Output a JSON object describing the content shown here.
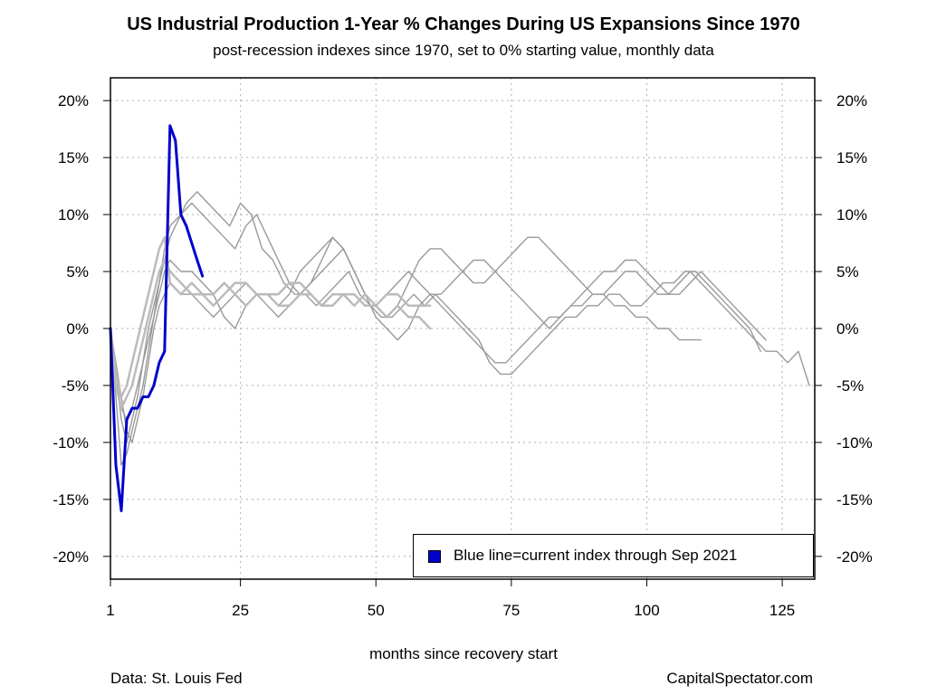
{
  "chart_data": {
    "type": "line",
    "title": "US Industrial Production 1-Year % Changes During US Expansions Since 1970",
    "subtitle": "post-recession indexes since 1970, set to 0% starting value, monthly data",
    "xlabel": "months since recovery start",
    "ylabel": "",
    "xlim": [
      1,
      131
    ],
    "ylim": [
      -22,
      22
    ],
    "x_ticks": [
      1,
      25,
      50,
      75,
      100,
      125
    ],
    "y_ticks": [
      {
        "value": 20,
        "label": "20%"
      },
      {
        "value": 15,
        "label": "15%"
      },
      {
        "value": 10,
        "label": "10%"
      },
      {
        "value": 5,
        "label": "5%"
      },
      {
        "value": 0,
        "label": "0%"
      },
      {
        "value": -5,
        "label": "-5%"
      },
      {
        "value": -10,
        "label": "-10%"
      },
      {
        "value": -15,
        "label": "-15%"
      },
      {
        "value": -20,
        "label": "-20%"
      }
    ],
    "grid": true,
    "legend": {
      "position": "bottom-right",
      "label": "Blue line=current index through Sep 2021"
    },
    "series": [
      {
        "style": "past",
        "color": "#999999",
        "x": [
          1,
          2,
          3,
          4,
          5,
          6,
          7,
          8,
          9,
          10,
          11,
          12,
          13,
          15,
          17,
          19,
          21,
          23,
          25,
          27,
          29,
          31,
          33,
          35,
          37,
          39,
          41,
          43,
          45,
          47,
          49,
          51,
          53,
          55,
          57,
          59,
          61,
          63,
          65,
          67,
          69,
          71,
          73,
          75,
          77,
          79,
          81,
          83,
          85,
          87,
          89,
          91,
          93,
          95,
          97,
          99,
          101,
          103,
          105,
          107,
          109,
          111,
          113,
          115,
          117,
          119,
          121
        ],
        "y": [
          0,
          -4,
          -8,
          -10,
          -8,
          -6,
          -3,
          0,
          2,
          4,
          6,
          8,
          9,
          11,
          12,
          11,
          10,
          9,
          11,
          10,
          7,
          6,
          4,
          3,
          3,
          2,
          3,
          4,
          5,
          3,
          2,
          1,
          1,
          2,
          3,
          2,
          3,
          2,
          1,
          0,
          -1,
          -3,
          -4,
          -4,
          -3,
          -2,
          -1,
          0,
          1,
          1,
          2,
          2,
          3,
          3,
          2,
          2,
          3,
          4,
          4,
          5,
          5,
          4,
          3,
          2,
          1,
          0,
          -2
        ]
      },
      {
        "style": "past",
        "color": "#999999",
        "x": [
          1,
          2,
          3,
          4,
          5,
          6,
          7,
          8,
          9,
          10,
          11,
          12,
          14,
          16,
          18,
          20,
          22,
          24,
          26,
          28,
          30,
          32,
          34,
          36,
          38,
          40,
          42,
          44,
          46,
          48,
          50,
          52,
          54,
          56,
          58,
          60,
          62,
          64,
          66,
          68,
          70,
          72,
          74,
          76,
          78,
          80,
          82,
          84,
          86,
          88,
          90,
          92,
          94,
          96,
          98,
          100,
          102,
          104,
          106,
          108,
          110,
          112,
          114,
          116,
          118,
          120,
          122,
          124,
          126,
          128,
          130
        ],
        "y": [
          0,
          -6,
          -12,
          -11,
          -9,
          -7,
          -5,
          -2,
          1,
          4,
          7,
          9,
          10,
          11,
          10,
          9,
          8,
          7,
          9,
          10,
          8,
          6,
          4,
          3,
          4,
          5,
          6,
          7,
          5,
          3,
          2,
          1,
          2,
          4,
          6,
          7,
          7,
          6,
          5,
          4,
          4,
          5,
          6,
          7,
          8,
          8,
          7,
          6,
          5,
          4,
          3,
          3,
          4,
          5,
          5,
          4,
          3,
          3,
          4,
          5,
          4,
          3,
          2,
          1,
          0,
          -1,
          -2,
          -2,
          -3,
          -2,
          -5
        ]
      },
      {
        "style": "past",
        "color": "#999999",
        "x": [
          1,
          2,
          3,
          4,
          5,
          6,
          7,
          8,
          9,
          10,
          11,
          12,
          14,
          16,
          18,
          20,
          22,
          24,
          26,
          28,
          30,
          32,
          34,
          36,
          38,
          40,
          42,
          44,
          46,
          48,
          50,
          52,
          54,
          56,
          58,
          60,
          62,
          64,
          66,
          68,
          70,
          72,
          74,
          76,
          78,
          80,
          82,
          84,
          86,
          88,
          90,
          92,
          94,
          96,
          98,
          100,
          102,
          104,
          106,
          108,
          110
        ],
        "y": [
          0,
          -4,
          -7,
          -8,
          -7,
          -5,
          -3,
          -1,
          1,
          3,
          5,
          6,
          5,
          5,
          4,
          3,
          1,
          0,
          2,
          3,
          3,
          2,
          3,
          5,
          6,
          7,
          8,
          7,
          5,
          3,
          2,
          3,
          4,
          5,
          4,
          3,
          2,
          1,
          0,
          -1,
          -2,
          -3,
          -3,
          -2,
          -1,
          0,
          1,
          1,
          2,
          2,
          3,
          3,
          2,
          2,
          1,
          1,
          0,
          0,
          -1,
          -1,
          -1
        ]
      },
      {
        "style": "past",
        "color": "#999999",
        "x": [
          1,
          2,
          3,
          4,
          5,
          6,
          7,
          8,
          9,
          10,
          11,
          12,
          14,
          16,
          18,
          20,
          22,
          24,
          26,
          28,
          30,
          32,
          34,
          36,
          38,
          40,
          42,
          44,
          46,
          48,
          50,
          52,
          54,
          56,
          58,
          60,
          62,
          64,
          66,
          68,
          70,
          72,
          74,
          76,
          78,
          80,
          82,
          84,
          86,
          88,
          90,
          92,
          94,
          96,
          98,
          100,
          102,
          104,
          106,
          108,
          110,
          112,
          114,
          116,
          118,
          120,
          122
        ],
        "y": [
          0,
          -3,
          -6,
          -9,
          -10,
          -8,
          -6,
          -3,
          0,
          2,
          3,
          4,
          3,
          3,
          2,
          1,
          2,
          3,
          4,
          3,
          2,
          1,
          2,
          3,
          4,
          6,
          8,
          7,
          5,
          3,
          1,
          0,
          -1,
          0,
          2,
          3,
          3,
          4,
          5,
          6,
          6,
          5,
          4,
          3,
          2,
          1,
          0,
          1,
          2,
          3,
          4,
          5,
          5,
          6,
          6,
          5,
          4,
          3,
          3,
          4,
          5,
          4,
          3,
          2,
          1,
          0,
          -1
        ]
      },
      {
        "style": "past_light",
        "color": "#bbbbbb",
        "x": [
          1,
          2,
          3,
          4,
          5,
          6,
          7,
          8,
          9,
          10,
          11,
          12,
          14,
          16,
          18,
          20,
          22,
          24,
          26,
          28,
          30,
          32,
          34,
          36,
          38,
          40,
          42,
          44,
          46,
          48,
          50,
          52,
          54,
          56,
          58,
          60
        ],
        "y": [
          0,
          -5,
          -7,
          -6,
          -5,
          -3,
          -1,
          1,
          3,
          5,
          6,
          5,
          4,
          3,
          3,
          2,
          3,
          4,
          4,
          3,
          3,
          2,
          2,
          3,
          3,
          2,
          2,
          3,
          3,
          2,
          2,
          1,
          2,
          1,
          1,
          0
        ]
      },
      {
        "style": "past_light",
        "color": "#bbbbbb",
        "x": [
          1,
          2,
          3,
          4,
          5,
          6,
          7,
          8,
          9,
          10,
          11,
          12,
          14,
          16,
          18,
          20,
          22,
          24,
          26,
          28,
          30,
          32,
          34,
          36,
          38,
          40,
          42,
          44,
          46,
          48,
          50,
          52,
          54,
          56,
          58,
          60
        ],
        "y": [
          0,
          -4,
          -6,
          -5,
          -3,
          -1,
          1,
          3,
          5,
          7,
          8,
          4,
          3,
          4,
          3,
          3,
          4,
          3,
          2,
          3,
          3,
          3,
          4,
          4,
          3,
          2,
          3,
          3,
          2,
          3,
          2,
          3,
          3,
          2,
          2,
          2
        ]
      },
      {
        "style": "current",
        "color": "#0000cc",
        "x": [
          1,
          2,
          3,
          4,
          5,
          6,
          7,
          8,
          9,
          10,
          11,
          12,
          13,
          14,
          15,
          16,
          17,
          18
        ],
        "y": [
          0,
          -12,
          -16,
          -8,
          -7,
          -7,
          -6,
          -6,
          -5,
          -3,
          -2,
          17.8,
          16.5,
          10,
          9,
          7.5,
          6,
          4.6
        ]
      }
    ]
  },
  "footer": {
    "source_left": "Data: St. Louis Fed",
    "source_right": "CapitalSpectator.com"
  }
}
